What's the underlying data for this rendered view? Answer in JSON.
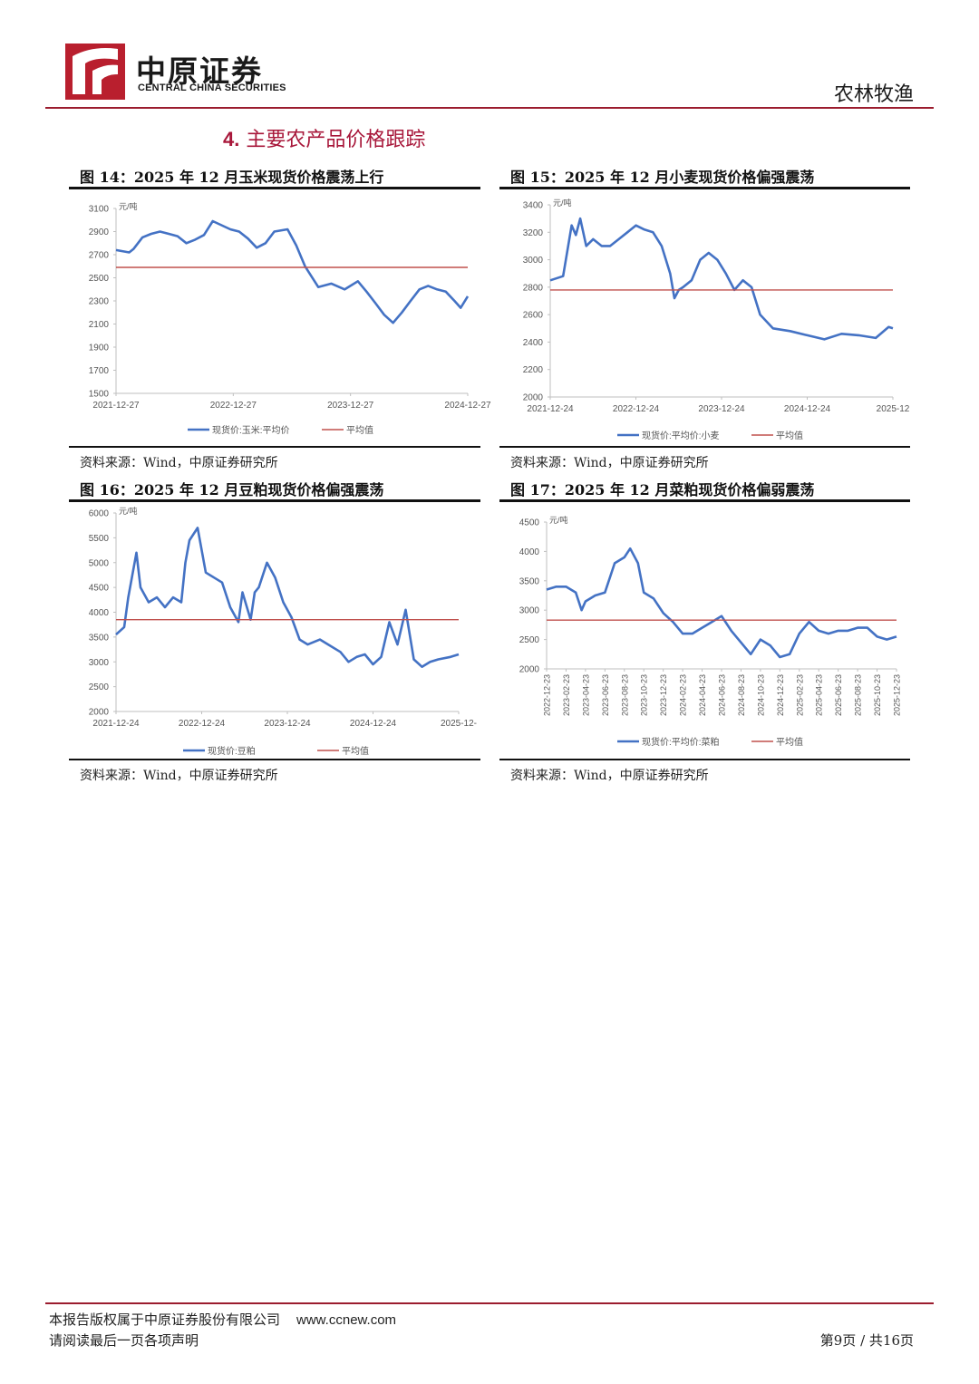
{
  "header": {
    "brand_cn": "中原证券",
    "brand_en": "CENTRAL CHINA SECURITIES",
    "industry": "农林牧渔"
  },
  "section": {
    "number": "4.",
    "title": "主要农产品价格跟踪"
  },
  "colors": {
    "accent": "#9b1c2e",
    "series": "#4472c4",
    "avg": "#c0504d"
  },
  "figures": [
    {
      "title": "图 14：2025 年 12 月玉米现货价格震荡上行",
      "source": "资料来源：Wind，中原证券研究所"
    },
    {
      "title": "图 15：2025 年 12 月小麦现货价格偏强震荡",
      "source": "资料来源：Wind，中原证券研究所"
    },
    {
      "title": "图 16：2025 年 12 月豆粕现货价格偏强震荡",
      "source": "资料来源：Wind，中原证券研究所"
    },
    {
      "title": "图 17：2025 年 12 月菜粕现货价格偏弱震荡",
      "source": "资料来源：Wind，中原证券研究所"
    }
  ],
  "chart_data": [
    {
      "type": "line",
      "title": "图 14：2025 年 12 月玉米现货价格震荡上行",
      "ylabel": "元/吨",
      "ylim": [
        1500,
        3100
      ],
      "yticks": [
        3100,
        2900,
        2700,
        2500,
        2300,
        2100,
        1900,
        1700,
        1500
      ],
      "xlim": [
        0,
        4
      ],
      "xticks": [
        "2021-12-27",
        "2022-12-27",
        "2023-12-27",
        "2024-12-27"
      ],
      "series": [
        {
          "name": "现货价:玉米:平均价",
          "x": [
            0,
            0.15,
            0.2,
            0.3,
            0.4,
            0.5,
            0.6,
            0.7,
            0.8,
            0.9,
            1.0,
            1.1,
            1.3,
            1.4,
            1.5,
            1.6,
            1.7,
            1.8,
            1.95,
            2.05,
            2.15,
            2.3,
            2.45,
            2.6,
            2.75,
            2.85,
            2.95,
            3.05,
            3.15,
            3.25,
            3.35,
            3.45,
            3.55,
            3.65,
            3.75,
            3.85,
            3.92,
            4.0
          ],
          "values": [
            2740,
            2720,
            2750,
            2850,
            2880,
            2900,
            2880,
            2860,
            2800,
            2830,
            2870,
            2990,
            2920,
            2900,
            2840,
            2760,
            2800,
            2900,
            2920,
            2780,
            2600,
            2420,
            2450,
            2400,
            2470,
            2380,
            2280,
            2180,
            2110,
            2200,
            2300,
            2400,
            2430,
            2400,
            2380,
            2300,
            2240,
            2340
          ]
        },
        {
          "name": "平均值",
          "x": [
            0,
            4
          ],
          "values": [
            2590,
            2590
          ]
        }
      ]
    },
    {
      "type": "line",
      "title": "图 15：2025 年 12 月小麦现货价格偏强震荡",
      "ylabel": "元/吨",
      "ylim": [
        2000,
        3400
      ],
      "yticks": [
        3400,
        3200,
        3000,
        2800,
        2600,
        2400,
        2200,
        2000
      ],
      "xlim": [
        0,
        4
      ],
      "xticks": [
        "2021-12-24",
        "2022-12-24",
        "2023-12-24",
        "2024-12-24",
        "2025-12"
      ],
      "series": [
        {
          "name": "现货价:平均价:小麦",
          "x": [
            0,
            0.15,
            0.25,
            0.3,
            0.35,
            0.42,
            0.5,
            0.6,
            0.7,
            0.8,
            0.9,
            1.0,
            1.1,
            1.2,
            1.3,
            1.4,
            1.45,
            1.5,
            1.55,
            1.65,
            1.75,
            1.85,
            1.95,
            2.05,
            2.15,
            2.25,
            2.35,
            2.45,
            2.6,
            2.8,
            3.0,
            3.2,
            3.4,
            3.6,
            3.8,
            3.95,
            4.0
          ],
          "values": [
            2850,
            2880,
            3250,
            3180,
            3300,
            3100,
            3150,
            3100,
            3100,
            3150,
            3200,
            3250,
            3220,
            3200,
            3100,
            2900,
            2720,
            2780,
            2800,
            2850,
            3000,
            3050,
            3000,
            2900,
            2780,
            2850,
            2800,
            2600,
            2500,
            2480,
            2450,
            2420,
            2460,
            2450,
            2430,
            2510,
            2500
          ]
        },
        {
          "name": "平均值",
          "x": [
            0,
            4
          ],
          "values": [
            2780,
            2780
          ]
        }
      ]
    },
    {
      "type": "line",
      "title": "图 16：2025 年 12 月豆粕现货价格偏强震荡",
      "ylabel": "元/吨",
      "ylim": [
        2000,
        6000
      ],
      "yticks": [
        6000,
        5500,
        5000,
        4500,
        4000,
        3500,
        3000,
        2500,
        2000
      ],
      "xlim": [
        0,
        4.2
      ],
      "xticks": [
        "2021-12-24",
        "2022-12-24",
        "2023-12-24",
        "2024-12-24",
        "2025-12-"
      ],
      "series": [
        {
          "name": "现货价:豆粕",
          "x": [
            0,
            0.1,
            0.15,
            0.25,
            0.3,
            0.4,
            0.5,
            0.6,
            0.7,
            0.8,
            0.85,
            0.9,
            1.0,
            1.1,
            1.2,
            1.3,
            1.4,
            1.5,
            1.55,
            1.65,
            1.7,
            1.75,
            1.85,
            1.95,
            2.05,
            2.15,
            2.25,
            2.35,
            2.5,
            2.6,
            2.75,
            2.85,
            2.95,
            3.05,
            3.15,
            3.25,
            3.35,
            3.45,
            3.55,
            3.65,
            3.75,
            3.85,
            3.95,
            4.1,
            4.2
          ],
          "values": [
            3550,
            3700,
            4300,
            5200,
            4500,
            4200,
            4300,
            4100,
            4300,
            4200,
            5000,
            5450,
            5700,
            4800,
            4700,
            4600,
            4100,
            3800,
            4400,
            3850,
            4400,
            4500,
            5000,
            4700,
            4200,
            3900,
            3450,
            3350,
            3450,
            3350,
            3200,
            3000,
            3100,
            3150,
            2950,
            3100,
            3800,
            3350,
            4050,
            3050,
            2900,
            3000,
            3050,
            3100,
            3150
          ]
        },
        {
          "name": "平均值",
          "x": [
            0,
            4.2
          ],
          "values": [
            3850,
            3850
          ]
        }
      ]
    },
    {
      "type": "line",
      "title": "图 17：2025 年 12 月菜粕现货价格偏弱震荡",
      "ylabel": "元/吨",
      "ylim": [
        2000,
        4500
      ],
      "yticks": [
        4500,
        4000,
        3500,
        3000,
        2500,
        2000
      ],
      "xlim": [
        0,
        18
      ],
      "xticks": [
        "2022-12-23",
        "2023-02-23",
        "2023-04-23",
        "2023-06-23",
        "2023-08-23",
        "2023-10-23",
        "2023-12-23",
        "2024-02-23",
        "2024-04-23",
        "2024-06-23",
        "2024-08-23",
        "2024-10-23",
        "2024-12-23",
        "2025-02-23",
        "2025-04-23",
        "2025-06-23",
        "2025-08-23",
        "2025-10-23",
        "2025-12-23"
      ],
      "series": [
        {
          "name": "现货价:平均价:菜粕",
          "x": [
            0,
            0.5,
            1,
            1.5,
            1.8,
            2,
            2.5,
            3,
            3.5,
            4,
            4.3,
            4.7,
            5,
            5.5,
            6,
            6.5,
            7,
            7.5,
            8,
            8.5,
            9,
            9.5,
            10,
            10.5,
            11,
            11.5,
            12,
            12.5,
            13,
            13.5,
            14,
            14.5,
            15,
            15.5,
            16,
            16.5,
            17,
            17.5,
            18
          ],
          "values": [
            3350,
            3400,
            3400,
            3300,
            3000,
            3150,
            3250,
            3300,
            3800,
            3900,
            4050,
            3800,
            3300,
            3200,
            2950,
            2800,
            2600,
            2600,
            2700,
            2800,
            2900,
            2650,
            2450,
            2250,
            2500,
            2400,
            2200,
            2250,
            2600,
            2800,
            2650,
            2600,
            2650,
            2650,
            2700,
            2700,
            2550,
            2500,
            2550
          ]
        },
        {
          "name": "平均值",
          "x": [
            0,
            18
          ],
          "values": [
            2830,
            2830
          ]
        }
      ]
    }
  ],
  "footer": {
    "copyright": "本报告版权属于中原证券股份有限公司",
    "url": "www.ccnew.com",
    "disclaimer": "请阅读最后一页各项声明",
    "page": "第9页 / 共16页"
  }
}
